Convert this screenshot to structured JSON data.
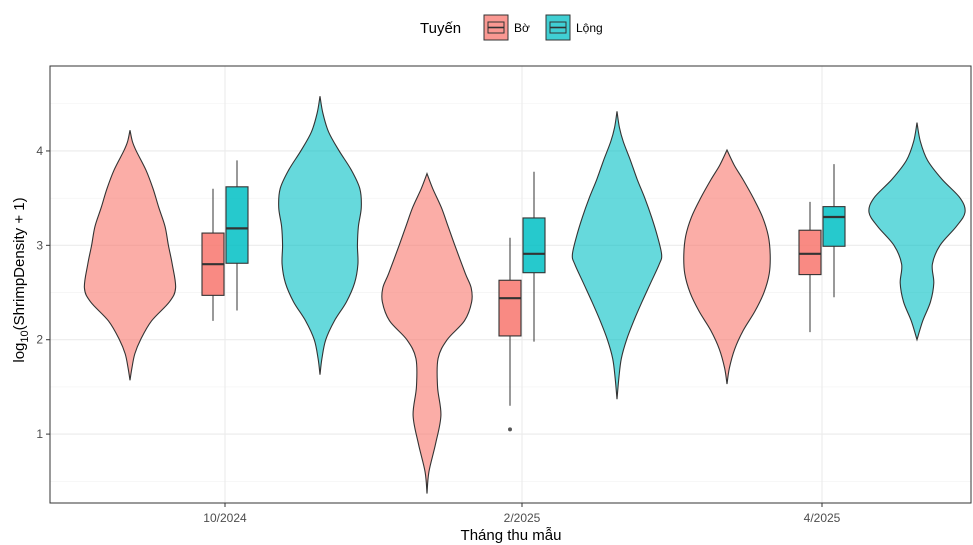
{
  "chart_data": {
    "type": "violin",
    "xlabel": "Tháng thu mẫu",
    "ylabel": "log10(ShrimpDensity + 1)",
    "ylabel_parts": {
      "prefix": "log",
      "subscript": "10",
      "suffix": "(ShrimpDensity + 1)"
    },
    "ylim": [
      0.27,
      4.9
    ],
    "yticks": [
      1,
      2,
      3,
      4
    ],
    "categories": [
      "10/2024",
      "2/2025",
      "4/2025"
    ],
    "grid": true,
    "legend": {
      "title": "Tuyến",
      "position": "top"
    },
    "series": [
      {
        "name": "Bờ",
        "color": "#F8766D",
        "groups": [
          {
            "category": "10/2024",
            "range": [
              1.57,
              4.22
            ],
            "density_y": [
              1.57,
              1.7,
              1.85,
              2.0,
              2.2,
              2.4,
              2.55,
              2.8,
              3.0,
              3.2,
              3.4,
              3.6,
              3.8,
              4.0,
              4.1,
              4.22
            ],
            "density_w": [
              0.0,
              0.04,
              0.1,
              0.22,
              0.45,
              0.82,
              0.95,
              0.88,
              0.8,
              0.73,
              0.6,
              0.48,
              0.33,
              0.13,
              0.05,
              0.0
            ],
            "box": {
              "q1": 2.47,
              "median": 2.8,
              "q3": 3.13,
              "whisker_low": 2.2,
              "whisker_high": 3.6
            },
            "outliers": []
          },
          {
            "category": "2/2025",
            "range": [
              0.37,
              3.76
            ],
            "density_y": [
              0.37,
              0.6,
              0.9,
              1.2,
              1.5,
              1.8,
              2.0,
              2.2,
              2.4,
              2.55,
              2.7,
              3.0,
              3.2,
              3.4,
              3.6,
              3.76
            ],
            "density_w": [
              0.0,
              0.04,
              0.18,
              0.29,
              0.22,
              0.23,
              0.42,
              0.78,
              0.93,
              0.92,
              0.8,
              0.58,
              0.44,
              0.3,
              0.12,
              0.0
            ],
            "box": {
              "q1": 2.04,
              "median": 2.44,
              "q3": 2.63,
              "whisker_low": 1.3,
              "whisker_high": 3.08
            },
            "outliers": [
              1.05
            ]
          },
          {
            "category": "4/2025",
            "range": [
              1.53,
              4.01
            ],
            "density_y": [
              1.53,
              1.7,
              1.9,
              2.1,
              2.3,
              2.5,
              2.7,
              2.9,
              3.1,
              3.3,
              3.5,
              3.7,
              3.85,
              4.01
            ],
            "density_w": [
              0.0,
              0.05,
              0.16,
              0.34,
              0.58,
              0.77,
              0.88,
              0.9,
              0.86,
              0.74,
              0.55,
              0.33,
              0.15,
              0.0
            ],
            "box": {
              "q1": 2.69,
              "median": 2.91,
              "q3": 3.16,
              "whisker_low": 2.08,
              "whisker_high": 3.46
            },
            "outliers": []
          }
        ]
      },
      {
        "name": "Lộng",
        "color": "#00BFC4",
        "groups": [
          {
            "category": "10/2024",
            "range": [
              1.63,
              4.58
            ],
            "density_y": [
              1.63,
              1.8,
              2.0,
              2.2,
              2.4,
              2.6,
              2.8,
              3.0,
              3.2,
              3.4,
              3.6,
              3.8,
              4.0,
              4.2,
              4.4,
              4.58
            ],
            "density_w": [
              0.0,
              0.04,
              0.12,
              0.3,
              0.55,
              0.72,
              0.79,
              0.78,
              0.8,
              0.86,
              0.83,
              0.65,
              0.4,
              0.18,
              0.06,
              0.0
            ],
            "box": {
              "q1": 2.81,
              "median": 3.18,
              "q3": 3.62,
              "whisker_low": 2.31,
              "whisker_high": 3.9
            },
            "outliers": []
          },
          {
            "category": "2/2025",
            "range": [
              1.37,
              4.42
            ],
            "density_y": [
              1.37,
              1.6,
              1.8,
              2.0,
              2.2,
              2.4,
              2.6,
              2.8,
              2.9,
              3.1,
              3.3,
              3.5,
              3.7,
              3.9,
              4.1,
              4.25,
              4.42
            ],
            "density_w": [
              0.0,
              0.04,
              0.09,
              0.2,
              0.35,
              0.52,
              0.7,
              0.88,
              0.93,
              0.84,
              0.72,
              0.58,
              0.42,
              0.28,
              0.13,
              0.05,
              0.0
            ],
            "box": {
              "q1": 2.71,
              "median": 2.91,
              "q3": 3.29,
              "whisker_low": 1.98,
              "whisker_high": 3.78
            },
            "outliers": []
          },
          {
            "category": "4/2025",
            "range": [
              2.0,
              4.3
            ],
            "density_y": [
              2.0,
              2.2,
              2.4,
              2.6,
              2.8,
              3.0,
              3.2,
              3.35,
              3.5,
              3.7,
              3.9,
              4.1,
              4.3
            ],
            "density_w": [
              0.0,
              0.12,
              0.28,
              0.35,
              0.32,
              0.48,
              0.82,
              1.0,
              0.9,
              0.52,
              0.22,
              0.07,
              0.0
            ],
            "box": {
              "q1": 2.99,
              "median": 3.3,
              "q3": 3.41,
              "whisker_low": 2.45,
              "whisker_high": 3.86
            },
            "outliers": []
          }
        ]
      }
    ]
  }
}
